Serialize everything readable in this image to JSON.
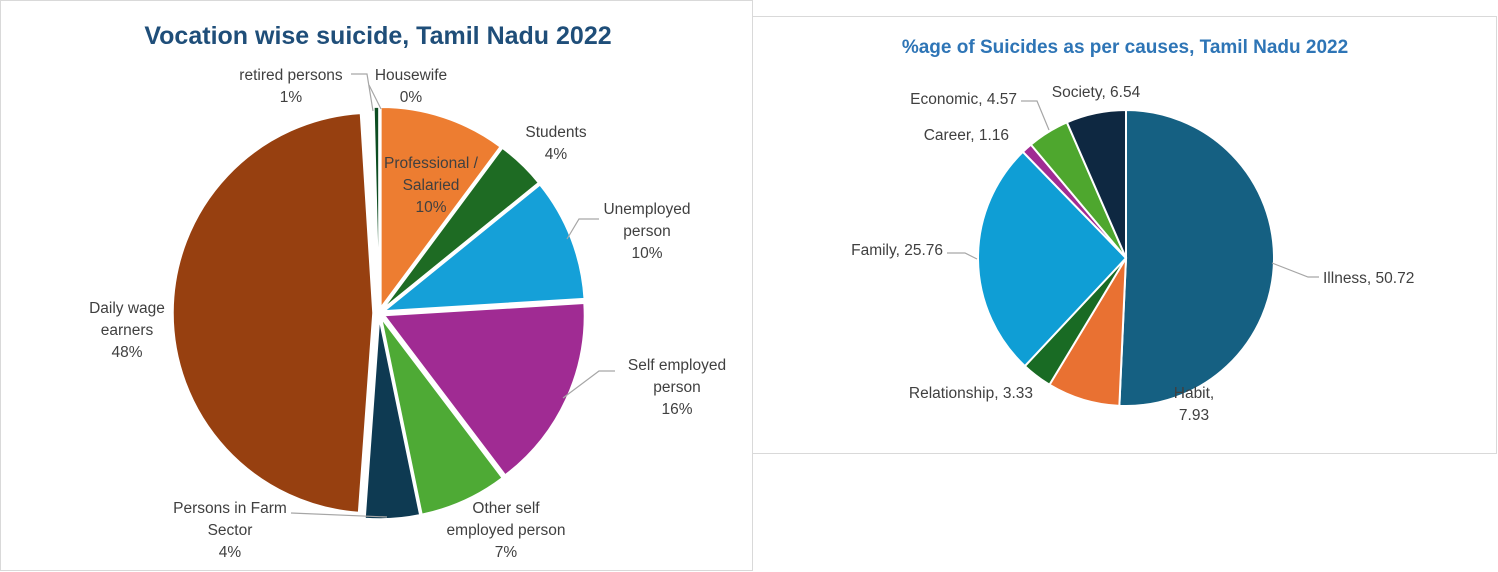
{
  "chart_data": [
    {
      "type": "pie",
      "title": "Vocation wise suicide, Tamil Nadu 2022",
      "unit": "%",
      "slices": [
        {
          "name": "Professional / Salaried",
          "value": 10.2,
          "label_pct": "10%",
          "color": "#ed7d31"
        },
        {
          "name": "Students",
          "value": 4.0,
          "label_pct": "4%",
          "color": "#1e6b23"
        },
        {
          "name": "Unemployed person",
          "value": 9.9,
          "label_pct": "10%",
          "color": "#15a0d8"
        },
        {
          "name": "Self employed person",
          "value": 15.7,
          "label_pct": "16%",
          "color": "#a02b93"
        },
        {
          "name": "Other self employed person",
          "value": 7.1,
          "label_pct": "7%",
          "color": "#4eaa35"
        },
        {
          "name": "Persons in Farm Sector",
          "value": 4.4,
          "label_pct": "4%",
          "color": "#0e3a52"
        },
        {
          "name": "Daily wage earners",
          "value": 48.0,
          "label_pct": "48%",
          "color": "#974010"
        },
        {
          "name": "retired persons",
          "value": 0.6,
          "label_pct": "1%",
          "color": "#ffffff"
        },
        {
          "name": "Housewife",
          "value": 0.4,
          "label_pct": "0%",
          "color": "#0d4d22"
        }
      ]
    },
    {
      "type": "pie",
      "title": "%age of Suicides as per causes, Tamil Nadu 2022",
      "slices": [
        {
          "name": "Illness",
          "value": 50.72,
          "color": "#156082"
        },
        {
          "name": "Habit",
          "value": 7.93,
          "color": "#e97132"
        },
        {
          "name": "Relationship",
          "value": 3.33,
          "color": "#196b24"
        },
        {
          "name": "Family",
          "value": 25.76,
          "color": "#0f9ed5"
        },
        {
          "name": "Career",
          "value": 1.16,
          "color": "#a02b93"
        },
        {
          "name": "Economic",
          "value": 4.57,
          "color": "#4ea72e"
        },
        {
          "name": "Society",
          "value": 6.54,
          "color": "#0e2841"
        }
      ]
    }
  ]
}
